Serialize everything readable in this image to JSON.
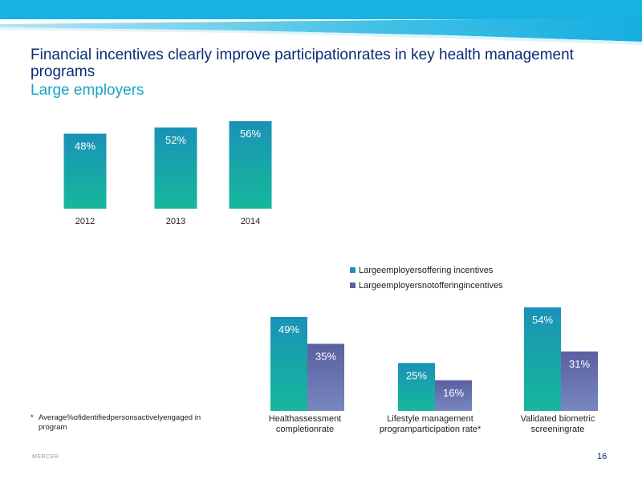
{
  "slide": {
    "title": "Financial incentives clearly improve participationrates in key health management programs",
    "subtitle": "Large employers",
    "footnote_marker": "*",
    "footnote": "Average%ofidentifiedpersonsactivelyengaged in program",
    "brand": "MERCER",
    "page_number": "16"
  },
  "colors": {
    "title": "#0b2b73",
    "subtitle": "#18a4c7",
    "incentive_top": "#1a92b8",
    "incentive_bottom": "#16b89a",
    "no_incentive_top": "#5a5fa0",
    "no_incentive_bottom": "#7787c0"
  },
  "chart_data": [
    {
      "type": "bar",
      "categories": [
        "2012",
        "2013",
        "2014"
      ],
      "values": [
        48,
        52,
        56
      ],
      "data_labels": [
        "48%",
        "52%",
        "56%"
      ],
      "ylim": [
        0,
        60
      ]
    },
    {
      "type": "bar",
      "categories": [
        "Healthassessment completionrate",
        "Lifestyle management programparticipation rate*",
        "Validated biometric screeningrate"
      ],
      "category_lines": [
        [
          "Healthassessment",
          "completionrate"
        ],
        [
          "Lifestyle management",
          "programparticipation rate*"
        ],
        [
          "Validated biometric",
          "screeningrate"
        ]
      ],
      "series": [
        {
          "name": "Largeemployersoffering incentives",
          "values": [
            49,
            25,
            54
          ],
          "data_labels": [
            "49%",
            "25%",
            "54%"
          ],
          "color": "#1a92b8"
        },
        {
          "name": "Largeemployersnotofferingincentives",
          "values": [
            35,
            16,
            31
          ],
          "data_labels": [
            "35%",
            "16%",
            "31%"
          ],
          "color": "#5a5fa0"
        }
      ],
      "legend": "top",
      "ylim": [
        0,
        60
      ]
    }
  ]
}
